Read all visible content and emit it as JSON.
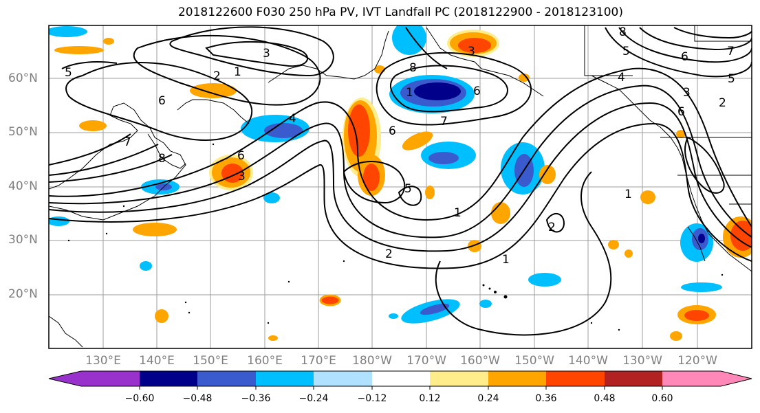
{
  "title": "2018122600 F030 250 hPa PV, IVT Landfall PC (2018122900 - 2018123100)",
  "latitude_labels": [
    "60°N",
    "50°N",
    "40°N",
    "30°N",
    "20°N"
  ],
  "longitude_labels": [
    "130°E",
    "140°E",
    "150°E",
    "160°E",
    "170°E",
    "180°W",
    "170°W",
    "160°W",
    "150°W",
    "140°W",
    "130°W",
    "120°W"
  ],
  "colorbar": {
    "tick_labels": [
      "−0.60",
      "−0.48",
      "−0.36",
      "−0.24",
      "−0.12",
      "0.12",
      "0.24",
      "0.36",
      "0.48",
      "0.60"
    ],
    "colors": [
      "#9932cc",
      "#00008b",
      "#3a5bcd",
      "#00bfff",
      "#b0e2ff",
      "#ffffff",
      "#ffec8b",
      "#ffa500",
      "#ff4500",
      "#b22222",
      "#ff88b8"
    ]
  },
  "contour_labels": [
    "5",
    "1",
    "2",
    "3",
    "6",
    "7",
    "8",
    "4",
    "6",
    "3",
    "6",
    "5",
    "1",
    "8",
    "7",
    "3",
    "6",
    "1",
    "1",
    "2",
    "1",
    "2",
    "6",
    "3",
    "4",
    "5",
    "6",
    "7",
    "5",
    "2",
    "8"
  ]
}
